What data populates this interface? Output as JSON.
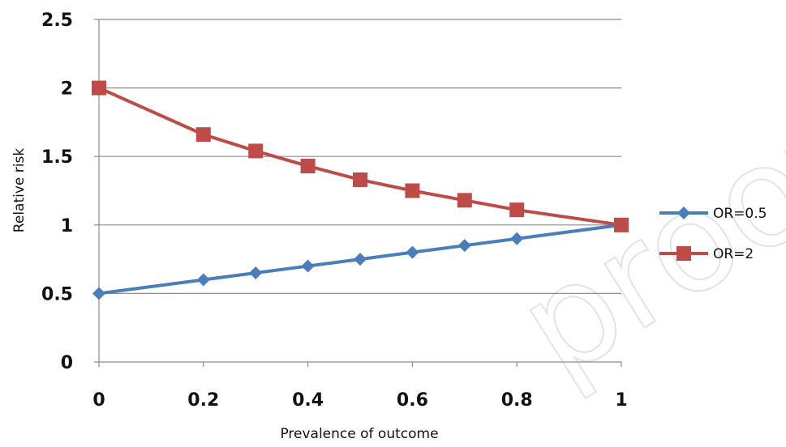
{
  "watermark": "proof",
  "chart_data": {
    "type": "line",
    "title": "",
    "xlabel": "Prevalence of outcome",
    "ylabel": "Relative risk",
    "xlim": [
      0,
      1
    ],
    "ylim": [
      0,
      2.5
    ],
    "x_ticks": [
      0,
      0.2,
      0.4,
      0.6,
      0.8,
      1
    ],
    "x_tick_labels": [
      "0",
      "0.2",
      "0.4",
      "0.6",
      "0.8",
      "1"
    ],
    "y_ticks": [
      0,
      0.5,
      1,
      1.5,
      2,
      2.5
    ],
    "y_tick_labels": [
      "0",
      "0.5",
      "1",
      "1.5",
      "2",
      "2.5"
    ],
    "grid": "horizontal",
    "legend_position": "right",
    "series": [
      {
        "name": "OR=0.5",
        "color": "#4a7ebb",
        "marker": "diamond",
        "x": [
          0,
          0.2,
          0.3,
          0.4,
          0.5,
          0.6,
          0.7,
          0.8,
          1
        ],
        "y": [
          0.5,
          0.6,
          0.65,
          0.7,
          0.75,
          0.8,
          0.85,
          0.9,
          1.0
        ]
      },
      {
        "name": "OR=2",
        "color": "#be4b48",
        "marker": "square",
        "x": [
          0,
          0.2,
          0.3,
          0.4,
          0.5,
          0.6,
          0.7,
          0.8,
          1
        ],
        "y": [
          2.0,
          1.66,
          1.54,
          1.43,
          1.33,
          1.25,
          1.18,
          1.11,
          1.0
        ]
      }
    ]
  }
}
